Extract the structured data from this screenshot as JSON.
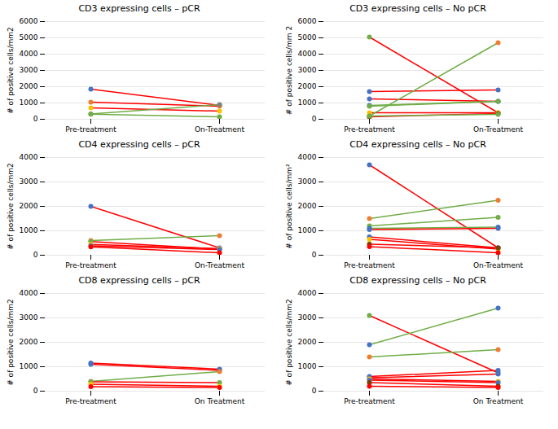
{
  "chart_data": [
    {
      "type": "line",
      "title": "CD3 expressing cells – pCR",
      "y_label": "# of positive cells/mm2",
      "categories": [
        "Pre-treatment",
        "On-Treatment"
      ],
      "ylim": [
        0,
        6000
      ],
      "yticks": [
        0,
        1000,
        2000,
        3000,
        4000,
        5000,
        6000
      ],
      "grid": true,
      "marker": "circle",
      "series": [
        {
          "values": [
            1850,
            850
          ],
          "color": "#FF0000",
          "colors": [
            "#4472C4",
            "#4472C4"
          ]
        },
        {
          "values": [
            1050,
            800
          ],
          "color": "#FF0000",
          "colors": [
            "#ED7D31",
            "#ED7D31"
          ]
        },
        {
          "values": [
            700,
            500
          ],
          "color": "#FF0000",
          "colors": [
            "#FFC000",
            "#FFC000"
          ]
        },
        {
          "values": [
            320,
            900
          ],
          "color": "#70AD47",
          "colors": [
            "#808080",
            "#808080"
          ]
        },
        {
          "values": [
            310,
            150
          ],
          "color": "#70AD47",
          "colors": [
            "#70AD47",
            "#70AD47"
          ]
        }
      ]
    },
    {
      "type": "line",
      "title": "CD3 expressing cells – No pCR",
      "y_label": "# of positive cells/mm 2",
      "categories": [
        "Pre-treatment",
        "On-Treatment"
      ],
      "ylim": [
        0,
        6000
      ],
      "yticks": [
        0,
        1000,
        2000,
        3000,
        4000,
        5000,
        6000
      ],
      "grid": true,
      "marker": "circle",
      "series": [
        {
          "values": [
            5050,
            400
          ],
          "color": "#FF0000",
          "colors": [
            "#70AD47",
            "#70AD47"
          ]
        },
        {
          "values": [
            1700,
            1800
          ],
          "color": "#FF0000",
          "colors": [
            "#4472C4",
            "#4472C4"
          ]
        },
        {
          "values": [
            1250,
            1100
          ],
          "color": "#FF0000",
          "colors": [
            "#4472C4",
            "#4472C4"
          ]
        },
        {
          "values": [
            850,
            1100
          ],
          "color": "#70AD47",
          "colors": [
            "#4472C4",
            "#4472C4"
          ]
        },
        {
          "values": [
            800,
            1100
          ],
          "color": "#70AD47",
          "colors": [
            "#70AD47",
            "#70AD47"
          ]
        },
        {
          "values": [
            400,
            400
          ],
          "color": "#FF0000",
          "colors": [
            "#FFC000",
            "#FFC000"
          ]
        },
        {
          "values": [
            200,
            4700
          ],
          "color": "#70AD47",
          "colors": [
            "#ED7D31",
            "#ED7D31"
          ]
        },
        {
          "values": [
            150,
            350
          ],
          "color": "#FF0000",
          "colors": [
            "#7B3F00",
            "#7B3F00"
          ]
        },
        {
          "values": [
            200,
            300
          ],
          "color": "#70AD47",
          "colors": [
            "#70AD47",
            "#70AD47"
          ]
        }
      ]
    },
    {
      "type": "line",
      "title": "CD4 expressing cells – pCR",
      "y_label": "# of positive cells/mm2",
      "categories": [
        "Pre-treatment",
        "On-Treatment"
      ],
      "ylim": [
        0,
        4000
      ],
      "yticks": [
        0,
        1000,
        2000,
        3000,
        4000
      ],
      "grid": true,
      "marker": "circle",
      "series": [
        {
          "values": [
            2000,
            300
          ],
          "color": "#FF0000",
          "colors": [
            "#4472C4",
            "#4472C4"
          ]
        },
        {
          "values": [
            600,
            800
          ],
          "color": "#70AD47",
          "colors": [
            "#ED7D31",
            "#ED7D31"
          ]
        },
        {
          "values": [
            560,
            250
          ],
          "color": "#FF0000",
          "colors": [
            "#70AD47",
            "#70AD47"
          ]
        },
        {
          "values": [
            440,
            270
          ],
          "color": "#FF0000",
          "colors": [
            "#FFC000",
            "#FFC000"
          ]
        },
        {
          "values": [
            380,
            230
          ],
          "color": "#FF0000",
          "colors": [
            "#4472C4",
            "#4472C4"
          ]
        },
        {
          "values": [
            340,
            100
          ],
          "color": "#FF0000",
          "colors": [
            "#FF0000",
            "#FF0000"
          ]
        }
      ]
    },
    {
      "type": "line",
      "title": "CD4 expressing cells – No pCR",
      "y_label": "# of positive cells/mm²",
      "categories": [
        "Pre-treatment",
        "On-Treatment"
      ],
      "ylim": [
        0,
        4000
      ],
      "yticks": [
        0,
        1000,
        2000,
        3000,
        4000
      ],
      "grid": true,
      "marker": "circle",
      "series": [
        {
          "values": [
            3700,
            300
          ],
          "color": "#FF0000",
          "colors": [
            "#4472C4",
            "#4472C4"
          ]
        },
        {
          "values": [
            1500,
            2250
          ],
          "color": "#70AD47",
          "colors": [
            "#ED7D31",
            "#ED7D31"
          ]
        },
        {
          "values": [
            1200,
            1550
          ],
          "color": "#70AD47",
          "colors": [
            "#70AD47",
            "#70AD47"
          ]
        },
        {
          "values": [
            1100,
            1150
          ],
          "color": "#70AD47",
          "colors": [
            "#4472C4",
            "#4472C4"
          ]
        },
        {
          "values": [
            1050,
            1100
          ],
          "color": "#FF0000",
          "colors": [
            "#4472C4",
            "#4472C4"
          ]
        },
        {
          "values": [
            750,
            300
          ],
          "color": "#FF0000",
          "colors": [
            "#4472C4",
            "#4472C4"
          ]
        },
        {
          "values": [
            650,
            250
          ],
          "color": "#FF0000",
          "colors": [
            "#FFC000",
            "#FFC000"
          ]
        },
        {
          "values": [
            450,
            300
          ],
          "color": "#FF0000",
          "colors": [
            "#7B3F00",
            "#7B3F00"
          ]
        },
        {
          "values": [
            350,
            100
          ],
          "color": "#FF0000",
          "colors": [
            "#FF0000",
            "#FF0000"
          ]
        }
      ]
    },
    {
      "type": "line",
      "title": "CD8 expressing cells – pCR",
      "y_label": "# of positive cells/mm2",
      "categories": [
        "Pre-treatment",
        "On Treatment"
      ],
      "ylim": [
        0,
        4000
      ],
      "yticks": [
        0,
        1000,
        2000,
        3000,
        4000
      ],
      "grid": true,
      "marker": "circle",
      "series": [
        {
          "values": [
            1150,
            900
          ],
          "color": "#FF0000",
          "colors": [
            "#4472C4",
            "#4472C4"
          ]
        },
        {
          "values": [
            1100,
            850
          ],
          "color": "#FF0000",
          "colors": [
            "#4472C4",
            "#4472C4"
          ]
        },
        {
          "values": [
            400,
            800
          ],
          "color": "#70AD47",
          "colors": [
            "#ED7D31",
            "#ED7D31"
          ]
        },
        {
          "values": [
            380,
            350
          ],
          "color": "#FF0000",
          "colors": [
            "#70AD47",
            "#70AD47"
          ]
        },
        {
          "values": [
            280,
            200
          ],
          "color": "#FF0000",
          "colors": [
            "#FFC000",
            "#FFC000"
          ]
        },
        {
          "values": [
            180,
            150
          ],
          "color": "#FF0000",
          "colors": [
            "#FF0000",
            "#FF0000"
          ]
        }
      ]
    },
    {
      "type": "line",
      "title": "CD8 expressing cells – No pCR",
      "y_label": "# of positive cells/mm2",
      "categories": [
        "Pre-treatment",
        "On Treatment"
      ],
      "ylim": [
        0,
        4000
      ],
      "yticks": [
        0,
        1000,
        2000,
        3000,
        4000
      ],
      "grid": true,
      "marker": "circle",
      "series": [
        {
          "values": [
            3100,
            750
          ],
          "color": "#FF0000",
          "colors": [
            "#70AD47",
            "#70AD47"
          ]
        },
        {
          "values": [
            1900,
            3400
          ],
          "color": "#70AD47",
          "colors": [
            "#4472C4",
            "#4472C4"
          ]
        },
        {
          "values": [
            1400,
            1700
          ],
          "color": "#70AD47",
          "colors": [
            "#ED7D31",
            "#ED7D31"
          ]
        },
        {
          "values": [
            600,
            850
          ],
          "color": "#FF0000",
          "colors": [
            "#4472C4",
            "#4472C4"
          ]
        },
        {
          "values": [
            550,
            700
          ],
          "color": "#FF0000",
          "colors": [
            "#4472C4",
            "#4472C4"
          ]
        },
        {
          "values": [
            500,
            400
          ],
          "color": "#FF0000",
          "colors": [
            "#FFC000",
            "#FFC000"
          ]
        },
        {
          "values": [
            450,
            350
          ],
          "color": "#FF0000",
          "colors": [
            "#4472C4",
            "#4472C4"
          ]
        },
        {
          "values": [
            350,
            200
          ],
          "color": "#FF0000",
          "colors": [
            "#7B3F00",
            "#7B3F00"
          ]
        },
        {
          "values": [
            200,
            150
          ],
          "color": "#FF0000",
          "colors": [
            "#FF0000",
            "#FF0000"
          ]
        }
      ]
    }
  ]
}
